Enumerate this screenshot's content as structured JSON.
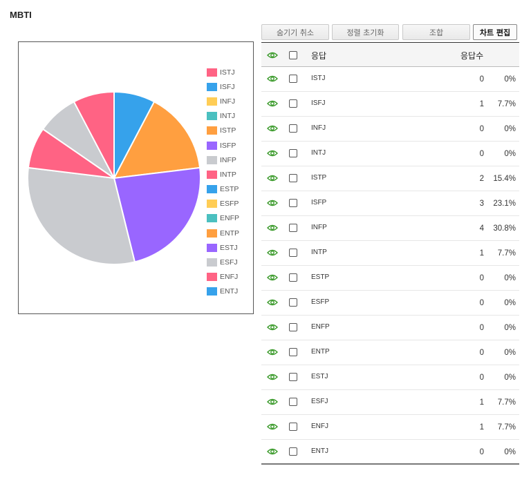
{
  "title": "MBTI",
  "toolbar": {
    "unhide": "숨기기 취소",
    "reset_sort": "정렬 초기화",
    "combine": "조합",
    "edit_chart": "차트 편집"
  },
  "table": {
    "header_answer": "응답",
    "header_count": "응답수",
    "rows": [
      {
        "answer": "ISTJ",
        "count": "0",
        "percent": "0%"
      },
      {
        "answer": "ISFJ",
        "count": "1",
        "percent": "7.7%"
      },
      {
        "answer": "INFJ",
        "count": "0",
        "percent": "0%"
      },
      {
        "answer": "INTJ",
        "count": "0",
        "percent": "0%"
      },
      {
        "answer": "ISTP",
        "count": "2",
        "percent": "15.4%"
      },
      {
        "answer": "ISFP",
        "count": "3",
        "percent": "23.1%"
      },
      {
        "answer": "INFP",
        "count": "4",
        "percent": "30.8%"
      },
      {
        "answer": "INTP",
        "count": "1",
        "percent": "7.7%"
      },
      {
        "answer": "ESTP",
        "count": "0",
        "percent": "0%"
      },
      {
        "answer": "ESFP",
        "count": "0",
        "percent": "0%"
      },
      {
        "answer": "ENFP",
        "count": "0",
        "percent": "0%"
      },
      {
        "answer": "ENTP",
        "count": "0",
        "percent": "0%"
      },
      {
        "answer": "ESTJ",
        "count": "0",
        "percent": "0%"
      },
      {
        "answer": "ESFJ",
        "count": "1",
        "percent": "7.7%"
      },
      {
        "answer": "ENFJ",
        "count": "1",
        "percent": "7.7%"
      },
      {
        "answer": "ENTJ",
        "count": "0",
        "percent": "0%"
      }
    ]
  },
  "colors": {
    "eye_icon": "#3a9a2a",
    "palette": [
      "#ff6384",
      "#36a2eb",
      "#ffcd56",
      "#4bc0c0",
      "#ff9f40",
      "#9966ff",
      "#c9cbcf"
    ]
  },
  "chart_data": {
    "type": "pie",
    "categories": [
      "ISTJ",
      "ISFJ",
      "INFJ",
      "INTJ",
      "ISTP",
      "ISFP",
      "INFP",
      "INTP",
      "ESTP",
      "ESFP",
      "ENFP",
      "ENTP",
      "ESTJ",
      "ESFJ",
      "ENFJ",
      "ENTJ"
    ],
    "values": [
      0,
      1,
      0,
      0,
      2,
      3,
      4,
      1,
      0,
      0,
      0,
      0,
      0,
      1,
      1,
      0
    ],
    "colors": [
      "#ff6384",
      "#36a2eb",
      "#ffcd56",
      "#4bc0c0",
      "#ff9f40",
      "#9966ff",
      "#c9cbcf",
      "#ff6384",
      "#36a2eb",
      "#ffcd56",
      "#4bc0c0",
      "#ff9f40",
      "#9966ff",
      "#c9cbcf",
      "#ff6384",
      "#36a2eb"
    ],
    "legend_position": "right"
  }
}
